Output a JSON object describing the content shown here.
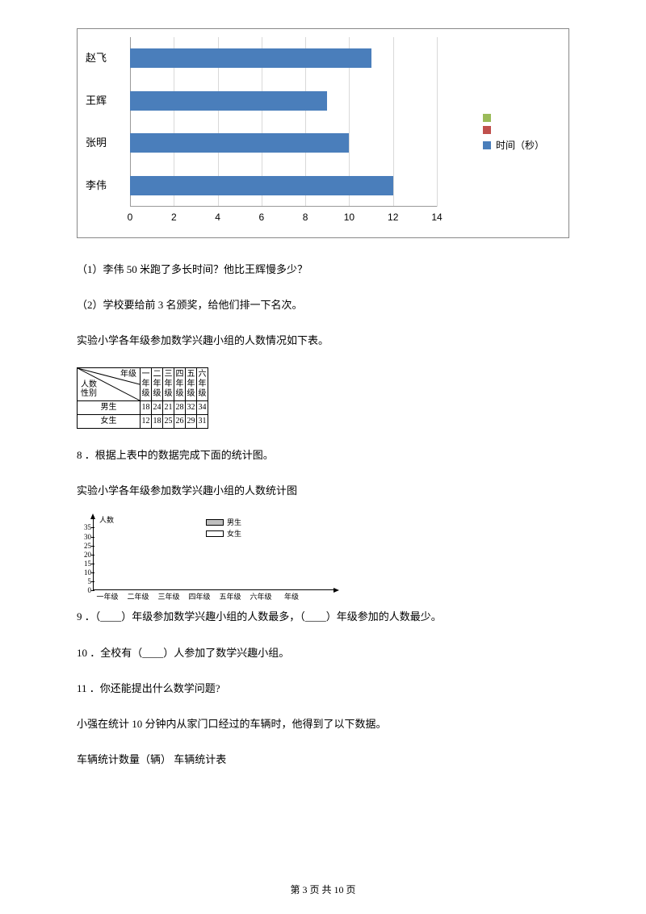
{
  "hbar_chart": {
    "type": "horizontal_bar",
    "categories": [
      "赵飞",
      "王辉",
      "张明",
      "李伟"
    ],
    "values": [
      11,
      9,
      10,
      12
    ],
    "bar_color": "#4a7ebb",
    "grid_color": "#d9d9d9",
    "xlim": [
      0,
      14
    ],
    "xtick_step": 2,
    "xticks": [
      0,
      2,
      4,
      6,
      8,
      10,
      12,
      14
    ],
    "legend": [
      {
        "label": "",
        "color": "#9bbb59"
      },
      {
        "label": "",
        "color": "#c0504d"
      },
      {
        "label": "时间（秒）",
        "color": "#4a7ebb"
      }
    ],
    "border_color": "#888888",
    "background_color": "#ffffff"
  },
  "q1": "（1）李伟 50 米跑了多长时间？他比王辉慢多少？",
  "q2": "（2）学校要给前 3 名颁奖，给他们排一下名次。",
  "table_intro": "实验小学各年级参加数学兴趣小组的人数情况如下表。",
  "table": {
    "diag_labels": {
      "top": "年级",
      "left": "人数",
      "bottom": "性别"
    },
    "grades": [
      "一年级",
      "二年级",
      "三年级",
      "四年级",
      "五年级",
      "六年级"
    ],
    "rows": [
      {
        "label": "男生",
        "values": [
          18,
          24,
          21,
          28,
          32,
          34
        ]
      },
      {
        "label": "女生",
        "values": [
          12,
          18,
          25,
          26,
          29,
          31
        ]
      }
    ]
  },
  "q8": "8 ．根据上表中的数据完成下面的统计图。",
  "stat_title": "实验小学各年级参加数学兴趣小组的人数统计图",
  "stat_chart": {
    "y_label": "人数",
    "yticks": [
      0,
      5,
      10,
      15,
      20,
      25,
      30,
      35
    ],
    "x_labels": [
      "一年级",
      "二年级",
      "三年级",
      "四年级",
      "五年级",
      "六年级",
      "年级"
    ],
    "legend": [
      {
        "label": "男生",
        "fill": "#bfbfbf"
      },
      {
        "label": "女生",
        "fill": "#ffffff"
      }
    ]
  },
  "q9": "9 ．（____）年级参加数学兴趣小组的人数最多，（____）年级参加的人数最少。",
  "q10": "10 ．全校有（____）人参加了数学兴趣小组。",
  "q11": "11 ．你还能提出什么数学问题?",
  "p_xq": "小强在统计 10 分钟内从家门口经过的车辆时，他得到了以下数据。",
  "p_veh": "车辆统计数量（辆）    车辆统计表",
  "footer": "第 3 页 共 10 页"
}
